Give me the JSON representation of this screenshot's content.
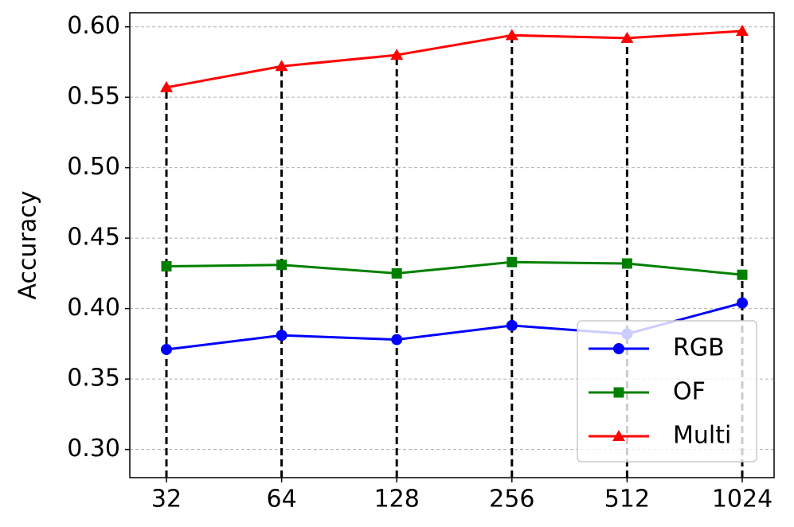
{
  "chart_data": {
    "type": "line",
    "y_label": "Accuracy",
    "categories": [
      "32",
      "64",
      "128",
      "256",
      "512",
      "1024"
    ],
    "series": [
      {
        "name": "RGB",
        "color": "#0000ff",
        "marker": "circle",
        "values": [
          0.371,
          0.381,
          0.378,
          0.388,
          0.382,
          0.404
        ]
      },
      {
        "name": "OF",
        "color": "#008000",
        "marker": "square",
        "values": [
          0.43,
          0.431,
          0.425,
          0.433,
          0.432,
          0.424
        ]
      },
      {
        "name": "Multi",
        "color": "#ff0000",
        "marker": "triangle",
        "values": [
          0.557,
          0.572,
          0.58,
          0.594,
          0.592,
          0.597
        ]
      }
    ],
    "ylim": [
      0.28,
      0.61
    ],
    "yticks": [
      {
        "value": 0.3,
        "label": "0.30"
      },
      {
        "value": 0.35,
        "label": "0.35"
      },
      {
        "value": 0.4,
        "label": "0.40"
      },
      {
        "value": 0.45,
        "label": "0.45"
      },
      {
        "value": 0.5,
        "label": "0.50"
      },
      {
        "value": 0.55,
        "label": "0.55"
      },
      {
        "value": 0.6,
        "label": "0.60"
      }
    ],
    "grid": true,
    "legend": "lower right"
  }
}
